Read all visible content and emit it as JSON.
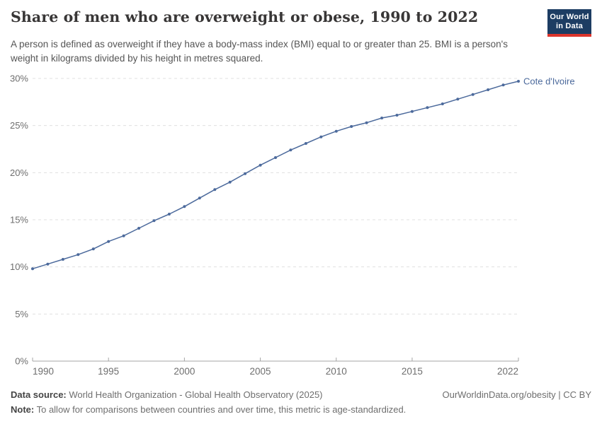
{
  "header": {
    "title": "Share of men who are overweight or obese, 1990 to 2022",
    "subtitle": "A person is defined as overweight if they have a body-mass index (BMI) equal to or greater than 25. BMI is a person's weight in kilograms divided by his height in metres squared.",
    "logo": {
      "line1": "Our World",
      "line2": "in Data",
      "bg_color": "#1d3d63",
      "stripe_color": "#dc352c"
    }
  },
  "chart_data": {
    "type": "line",
    "title": "Share of men who are overweight or obese, 1990 to 2022",
    "x": [
      1990,
      1991,
      1992,
      1993,
      1994,
      1995,
      1996,
      1997,
      1998,
      1999,
      2000,
      2001,
      2002,
      2003,
      2004,
      2005,
      2006,
      2007,
      2008,
      2009,
      2010,
      2011,
      2012,
      2013,
      2014,
      2015,
      2016,
      2017,
      2018,
      2019,
      2020,
      2021,
      2022
    ],
    "series": [
      {
        "name": "Cote d'Ivoire",
        "color": "#4C6A9C",
        "values": [
          9.8,
          10.3,
          10.8,
          11.3,
          11.9,
          12.7,
          13.3,
          14.1,
          14.9,
          15.6,
          16.4,
          17.3,
          18.2,
          19.0,
          19.9,
          20.8,
          21.6,
          22.4,
          23.1,
          23.8,
          24.4,
          24.9,
          25.3,
          25.8,
          26.1,
          26.5,
          26.9,
          27.3,
          27.8,
          28.3,
          28.8,
          29.3,
          29.7
        ]
      }
    ],
    "xlabel": "",
    "ylabel": "",
    "xlim": [
      1990,
      2022
    ],
    "ylim": [
      0,
      30
    ],
    "x_ticks": [
      1990,
      1995,
      2000,
      2005,
      2010,
      2015,
      2022
    ],
    "y_ticks": [
      0,
      5,
      10,
      15,
      20,
      25,
      30
    ],
    "y_tick_suffix": "%",
    "grid": "dashed horizontal",
    "legend_position": "end-of-line label",
    "grid_color": "#e0e0e0",
    "axis_color": "#a5a5a5",
    "tick_label_color": "#6e6e6e"
  },
  "footer": {
    "data_source_label": "Data source:",
    "data_source_text": " World Health Organization - Global Health Observatory (2025)",
    "link": "OurWorldinData.org/obesity | CC BY",
    "note_label": "Note:",
    "note_text": " To allow for comparisons between countries and over time, this metric is age-standardized."
  }
}
